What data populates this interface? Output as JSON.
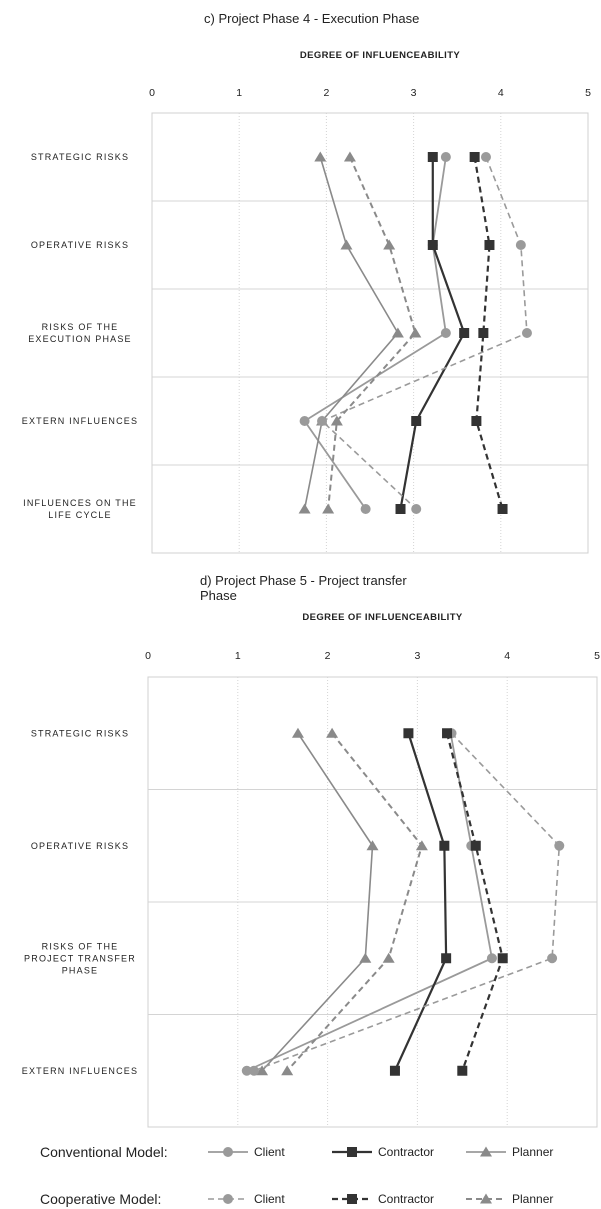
{
  "chart_data": [
    {
      "type": "line",
      "title": "c) Project Phase  4 - Execution Phase",
      "xlabel": "DEGREE OF INFLUENCEABILITY",
      "ylabel": "",
      "xlim": [
        0,
        5
      ],
      "x_ticks": [
        "0",
        "1",
        "2",
        "3",
        "4",
        "5"
      ],
      "categories": [
        "STRATEGIC RISKS",
        "OPERATIVE RISKS",
        "RISKS OF THE|EXECUTION PHASE",
        "EXTERN INFLUENCES",
        "INFLUENCES ON THE|LIFE CYCLE"
      ],
      "grid": true,
      "series": [
        {
          "name": "Client",
          "model": "conventional",
          "marker": "circle",
          "values": [
            3.37,
            3.22,
            3.37,
            1.75,
            2.45
          ]
        },
        {
          "name": "Contractor",
          "model": "conventional",
          "marker": "square",
          "values": [
            3.22,
            3.22,
            3.58,
            3.03,
            2.85
          ]
        },
        {
          "name": "Planner",
          "model": "conventional",
          "marker": "triangle",
          "values": [
            1.93,
            2.23,
            2.82,
            1.95,
            1.75
          ]
        },
        {
          "name": "Client",
          "model": "cooperative",
          "marker": "circle",
          "values": [
            3.83,
            4.23,
            4.3,
            1.95,
            3.03
          ]
        },
        {
          "name": "Contractor",
          "model": "cooperative",
          "marker": "square",
          "values": [
            3.7,
            3.87,
            3.8,
            3.72,
            4.02
          ]
        },
        {
          "name": "Planner",
          "model": "cooperative",
          "marker": "triangle",
          "values": [
            2.27,
            2.72,
            3.02,
            2.12,
            2.02
          ]
        }
      ]
    },
    {
      "type": "line",
      "title": "d) Project Phase  5 - Project transfer|Phase",
      "xlabel": "DEGREE OF INFLUENCEABILITY",
      "ylabel": "",
      "xlim": [
        0,
        5
      ],
      "x_ticks": [
        "0",
        "1",
        "2",
        "3",
        "4",
        "5"
      ],
      "categories": [
        "STRATEGIC RISKS",
        "OPERATIVE RISKS",
        "RISKS OF THE|PROJECT TRANSFER|PHASE",
        "EXTERN INFLUENCES"
      ],
      "grid": true,
      "series": [
        {
          "name": "Client",
          "model": "conventional",
          "marker": "circle",
          "values": [
            3.37,
            3.6,
            3.83,
            1.1
          ]
        },
        {
          "name": "Contractor",
          "model": "conventional",
          "marker": "square",
          "values": [
            2.9,
            3.3,
            3.32,
            2.75
          ]
        },
        {
          "name": "Planner",
          "model": "conventional",
          "marker": "triangle",
          "values": [
            1.67,
            2.5,
            2.42,
            1.27
          ]
        },
        {
          "name": "Client",
          "model": "cooperative",
          "marker": "circle",
          "values": [
            3.38,
            4.58,
            4.5,
            1.18
          ]
        },
        {
          "name": "Contractor",
          "model": "cooperative",
          "marker": "square",
          "values": [
            3.33,
            3.65,
            3.95,
            3.5
          ]
        },
        {
          "name": "Planner",
          "model": "cooperative",
          "marker": "triangle",
          "values": [
            2.05,
            3.05,
            2.68,
            1.55
          ]
        }
      ]
    }
  ],
  "legend": {
    "conventional_label": "Conventional Model:",
    "cooperative_label": "Cooperative Model:",
    "items": [
      "Client",
      "Contractor",
      "Planner"
    ]
  },
  "colors": {
    "client": "#9a9a9a",
    "contractor": "#333333",
    "planner": "#8a8a8a",
    "grid": "#d4d4d4",
    "frame": "#d0d0d0"
  }
}
